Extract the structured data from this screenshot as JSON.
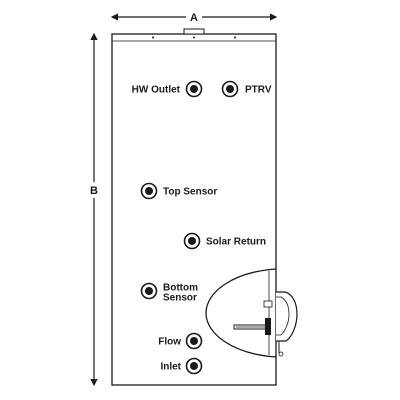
{
  "dimensions": {
    "width_label": "A",
    "height_label": "B"
  },
  "connections": {
    "hw_outlet": "HW Outlet",
    "ptrv": "PTRV",
    "top_sensor": "Top Sensor",
    "solar_return": "Solar Return",
    "bottom_sensor_line1": "Bottom",
    "bottom_sensor_line2": "Sensor",
    "flow": "Flow",
    "inlet": "Inlet"
  }
}
